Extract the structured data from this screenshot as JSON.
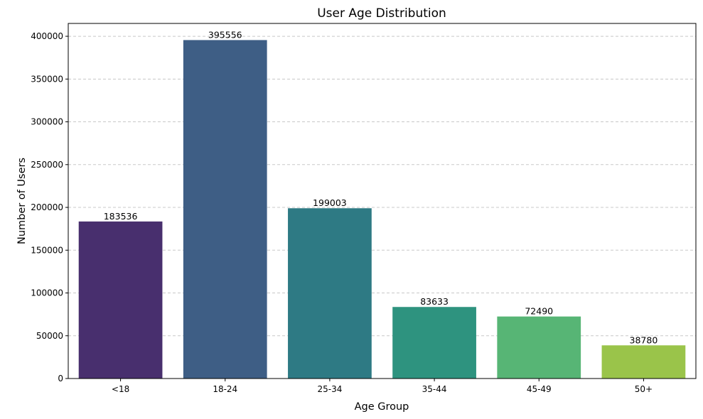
{
  "chart_data": {
    "type": "bar",
    "title": "User Age Distribution",
    "xlabel": "Age Group",
    "ylabel": "Number of Users",
    "categories": [
      "<18",
      "18-24",
      "25-34",
      "35-44",
      "45-49",
      "50+"
    ],
    "values": [
      183536,
      395556,
      199003,
      83633,
      72490,
      38780
    ],
    "colors": [
      "#482f6e",
      "#3e5e85",
      "#2e7a84",
      "#2e937f",
      "#57b575",
      "#9ac44a"
    ],
    "ylim": [
      0,
      415000
    ],
    "yticks": [
      0,
      50000,
      100000,
      150000,
      200000,
      250000,
      300000,
      350000,
      400000
    ],
    "grid": "y-dashed",
    "legend": "none"
  }
}
